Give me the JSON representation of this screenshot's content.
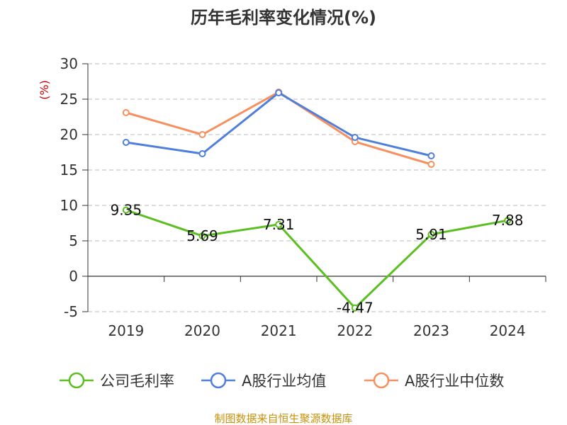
{
  "chart_data": {
    "type": "line",
    "title": "历年毛利率变化情况(%)",
    "ylabel": "(%)",
    "categories": [
      "2019",
      "2020",
      "2021",
      "2022",
      "2023",
      "2024"
    ],
    "ylim": [
      -5,
      30
    ],
    "yticks": [
      -5,
      0,
      5,
      10,
      15,
      20,
      25,
      30
    ],
    "grid": true,
    "legend_position": "bottom",
    "series": [
      {
        "name": "公司毛利率",
        "color": "#5bbf22",
        "values": [
          9.35,
          5.69,
          7.31,
          -4.47,
          5.91,
          7.88
        ],
        "labels": [
          "9.35",
          "5.69",
          "7.31",
          "-4.47",
          "5.91",
          "7.88"
        ]
      },
      {
        "name": "A股行业均值",
        "color": "#4f7fda",
        "values": [
          18.9,
          17.3,
          25.9,
          19.6,
          17.0,
          null
        ]
      },
      {
        "name": "A股行业中位数",
        "color": "#f79060",
        "values": [
          23.1,
          20.0,
          26.0,
          19.0,
          15.8,
          null
        ]
      }
    ]
  },
  "source_text": "制图数据来自恒生聚源数据库",
  "colors": {
    "axis": "#333333",
    "grid": "#bbbbbb",
    "ylabel": "#cc0000",
    "source": "#c8900b"
  }
}
